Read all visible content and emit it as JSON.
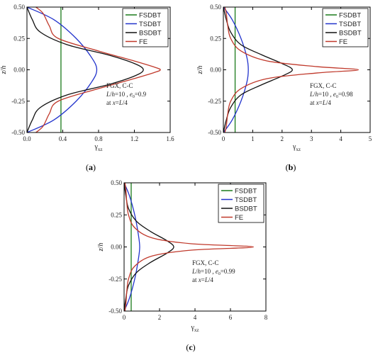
{
  "legend_entries": [
    "FSDBT",
    "TSDBT",
    "BSDBT",
    "FE"
  ],
  "colors": {
    "FSDBT": "#1a7a1a",
    "TSDBT": "#2233cc",
    "BSDBT": "#111111",
    "FE": "#c0392b"
  },
  "panels": [
    {
      "label_open": "(",
      "label_letter": "a",
      "label_close": ")",
      "annotation": {
        "line1": "FGX,  C-C",
        "l": "L",
        "slash": "/",
        "h": "h",
        "eq": "=10 , ",
        "e": "e",
        "sub0": "0",
        "val": "=0.9",
        "at": "at ",
        "x": "x",
        "eqL": "=",
        "L": "L",
        "div": "/4"
      },
      "ylabel_z": "z",
      "ylabel_slash": "/",
      "ylabel_h": "h",
      "xlabel_gamma": "γ",
      "xlabel_sub": "xz"
    },
    {
      "label_open": "(",
      "label_letter": "b",
      "label_close": ")",
      "annotation": {
        "line1": "FGX,  C-C",
        "l": "L",
        "slash": "/",
        "h": "h",
        "eq": "=10 , ",
        "e": "e",
        "sub0": "0",
        "val": "=0.98",
        "at": "at ",
        "x": "x",
        "eqL": "=",
        "L": "L",
        "div": "/4"
      },
      "ylabel_z": "z",
      "ylabel_slash": "/",
      "ylabel_h": "h",
      "xlabel_gamma": "γ",
      "xlabel_sub": "xz"
    },
    {
      "label_open": "(",
      "label_letter": "c",
      "label_close": ")",
      "annotation": {
        "line1": "FGX,  C-C",
        "l": "L",
        "slash": "/",
        "h": "h",
        "eq": "=10 , ",
        "e": "e",
        "sub0": "0",
        "val": "=0.99",
        "at": "at ",
        "x": "x",
        "eqL": "=",
        "L": "L",
        "div": "/4"
      },
      "ylabel_z": "z",
      "ylabel_slash": "/",
      "ylabel_h": "h",
      "xlabel_gamma": "γ",
      "xlabel_sub": "xz"
    }
  ],
  "chart_data": [
    {
      "type": "line",
      "xlim": [
        0,
        1.6
      ],
      "ylim": [
        -0.5,
        0.5
      ],
      "xticks": [
        "0.0",
        "0.4",
        "0.8",
        "1.2",
        "1.6"
      ],
      "yticks": [
        "-0.50",
        "-0.25",
        "0.00",
        "0.25",
        "0.50"
      ],
      "xtick_values": [
        0,
        0.4,
        0.8,
        1.2,
        1.6
      ],
      "ytick_values": [
        -0.5,
        -0.25,
        0,
        0.25,
        0.5
      ],
      "legend_position": "top-right",
      "grid": false,
      "series": [
        {
          "name": "FSDBT",
          "x": [
            0.38,
            0.38
          ],
          "y": [
            -0.5,
            0.5
          ]
        },
        {
          "name": "TSDBT",
          "x": [
            0,
            0.3,
            0.55,
            0.72,
            0.78,
            0.72,
            0.55,
            0.3,
            0
          ],
          "y": [
            -0.5,
            -0.4,
            -0.25,
            -0.1,
            0,
            0.1,
            0.25,
            0.4,
            0.5
          ]
        },
        {
          "name": "BSDBT",
          "x": [
            0,
            0.06,
            0.15,
            0.45,
            0.9,
            1.2,
            1.3,
            1.2,
            0.9,
            0.45,
            0.15,
            0.06,
            0
          ],
          "y": [
            -0.5,
            -0.4,
            -0.3,
            -0.2,
            -0.12,
            -0.05,
            0,
            0.05,
            0.12,
            0.2,
            0.3,
            0.4,
            0.5
          ]
        },
        {
          "name": "FE",
          "x": [
            0.1,
            0.18,
            0.25,
            0.35,
            0.8,
            1.2,
            1.43,
            1.49,
            1.43,
            1.2,
            0.8,
            0.35,
            0.25,
            0.18,
            0.1
          ],
          "y": [
            -0.5,
            -0.45,
            -0.35,
            -0.25,
            -0.15,
            -0.07,
            -0.02,
            0,
            0.02,
            0.07,
            0.15,
            0.25,
            0.35,
            0.45,
            0.5
          ]
        }
      ]
    },
    {
      "type": "line",
      "xlim": [
        0,
        5
      ],
      "ylim": [
        -0.5,
        0.5
      ],
      "xticks": [
        "0",
        "1",
        "2",
        "3",
        "4",
        "5"
      ],
      "yticks": [
        "-0.50",
        "-0.25",
        "0.00",
        "0.25",
        "0.50"
      ],
      "xtick_values": [
        0,
        1,
        2,
        3,
        4,
        5
      ],
      "ytick_values": [
        -0.5,
        -0.25,
        0,
        0.25,
        0.5
      ],
      "legend_position": "top-right",
      "grid": false,
      "series": [
        {
          "name": "FSDBT",
          "x": [
            0.4,
            0.4
          ],
          "y": [
            -0.5,
            0.5
          ]
        },
        {
          "name": "TSDBT",
          "x": [
            0,
            0.3,
            0.6,
            0.8,
            0.85,
            0.8,
            0.6,
            0.3,
            0
          ],
          "y": [
            -0.5,
            -0.4,
            -0.25,
            -0.1,
            0,
            0.1,
            0.25,
            0.4,
            0.5
          ]
        },
        {
          "name": "BSDBT",
          "x": [
            0,
            0.1,
            0.25,
            0.6,
            1.3,
            2.0,
            2.35,
            2.0,
            1.3,
            0.6,
            0.25,
            0.1,
            0
          ],
          "y": [
            -0.5,
            -0.4,
            -0.3,
            -0.2,
            -0.12,
            -0.05,
            0,
            0.05,
            0.12,
            0.2,
            0.3,
            0.4,
            0.5
          ]
        },
        {
          "name": "FE",
          "x": [
            0.05,
            0.1,
            0.15,
            0.25,
            0.6,
            1.5,
            3.2,
            4.6,
            3.2,
            1.5,
            0.6,
            0.25,
            0.15,
            0.1,
            0.05
          ],
          "y": [
            -0.5,
            -0.45,
            -0.35,
            -0.25,
            -0.15,
            -0.07,
            -0.025,
            0,
            0.025,
            0.07,
            0.15,
            0.25,
            0.35,
            0.45,
            0.5
          ]
        }
      ]
    },
    {
      "type": "line",
      "xlim": [
        0,
        8
      ],
      "ylim": [
        -0.5,
        0.5
      ],
      "xticks": [
        "0",
        "2",
        "4",
        "6",
        "8"
      ],
      "yticks": [
        "-0.50",
        "-0.25",
        "0.00",
        "0.25",
        "0.50"
      ],
      "xtick_values": [
        0,
        2,
        4,
        6,
        8
      ],
      "ytick_values": [
        -0.5,
        -0.25,
        0,
        0.25,
        0.5
      ],
      "legend_position": "top-right",
      "grid": false,
      "series": [
        {
          "name": "FSDBT",
          "x": [
            0.4,
            0.4
          ],
          "y": [
            -0.5,
            0.5
          ]
        },
        {
          "name": "TSDBT",
          "x": [
            0,
            0.3,
            0.6,
            0.8,
            0.88,
            0.8,
            0.6,
            0.3,
            0
          ],
          "y": [
            -0.5,
            -0.4,
            -0.25,
            -0.1,
            0,
            0.1,
            0.25,
            0.4,
            0.5
          ]
        },
        {
          "name": "BSDBT",
          "x": [
            0,
            0.1,
            0.25,
            0.7,
            1.5,
            2.4,
            2.8,
            2.4,
            1.5,
            0.7,
            0.25,
            0.1,
            0
          ],
          "y": [
            -0.5,
            -0.4,
            -0.3,
            -0.2,
            -0.12,
            -0.05,
            0,
            0.05,
            0.12,
            0.2,
            0.3,
            0.4,
            0.5
          ]
        },
        {
          "name": "FE",
          "x": [
            0.05,
            0.1,
            0.15,
            0.25,
            0.6,
            1.6,
            3.8,
            7.3,
            3.8,
            1.6,
            0.6,
            0.25,
            0.15,
            0.1,
            0.05
          ],
          "y": [
            -0.5,
            -0.45,
            -0.35,
            -0.25,
            -0.15,
            -0.07,
            -0.025,
            0,
            0.025,
            0.07,
            0.15,
            0.25,
            0.35,
            0.45,
            0.5
          ]
        }
      ]
    }
  ]
}
